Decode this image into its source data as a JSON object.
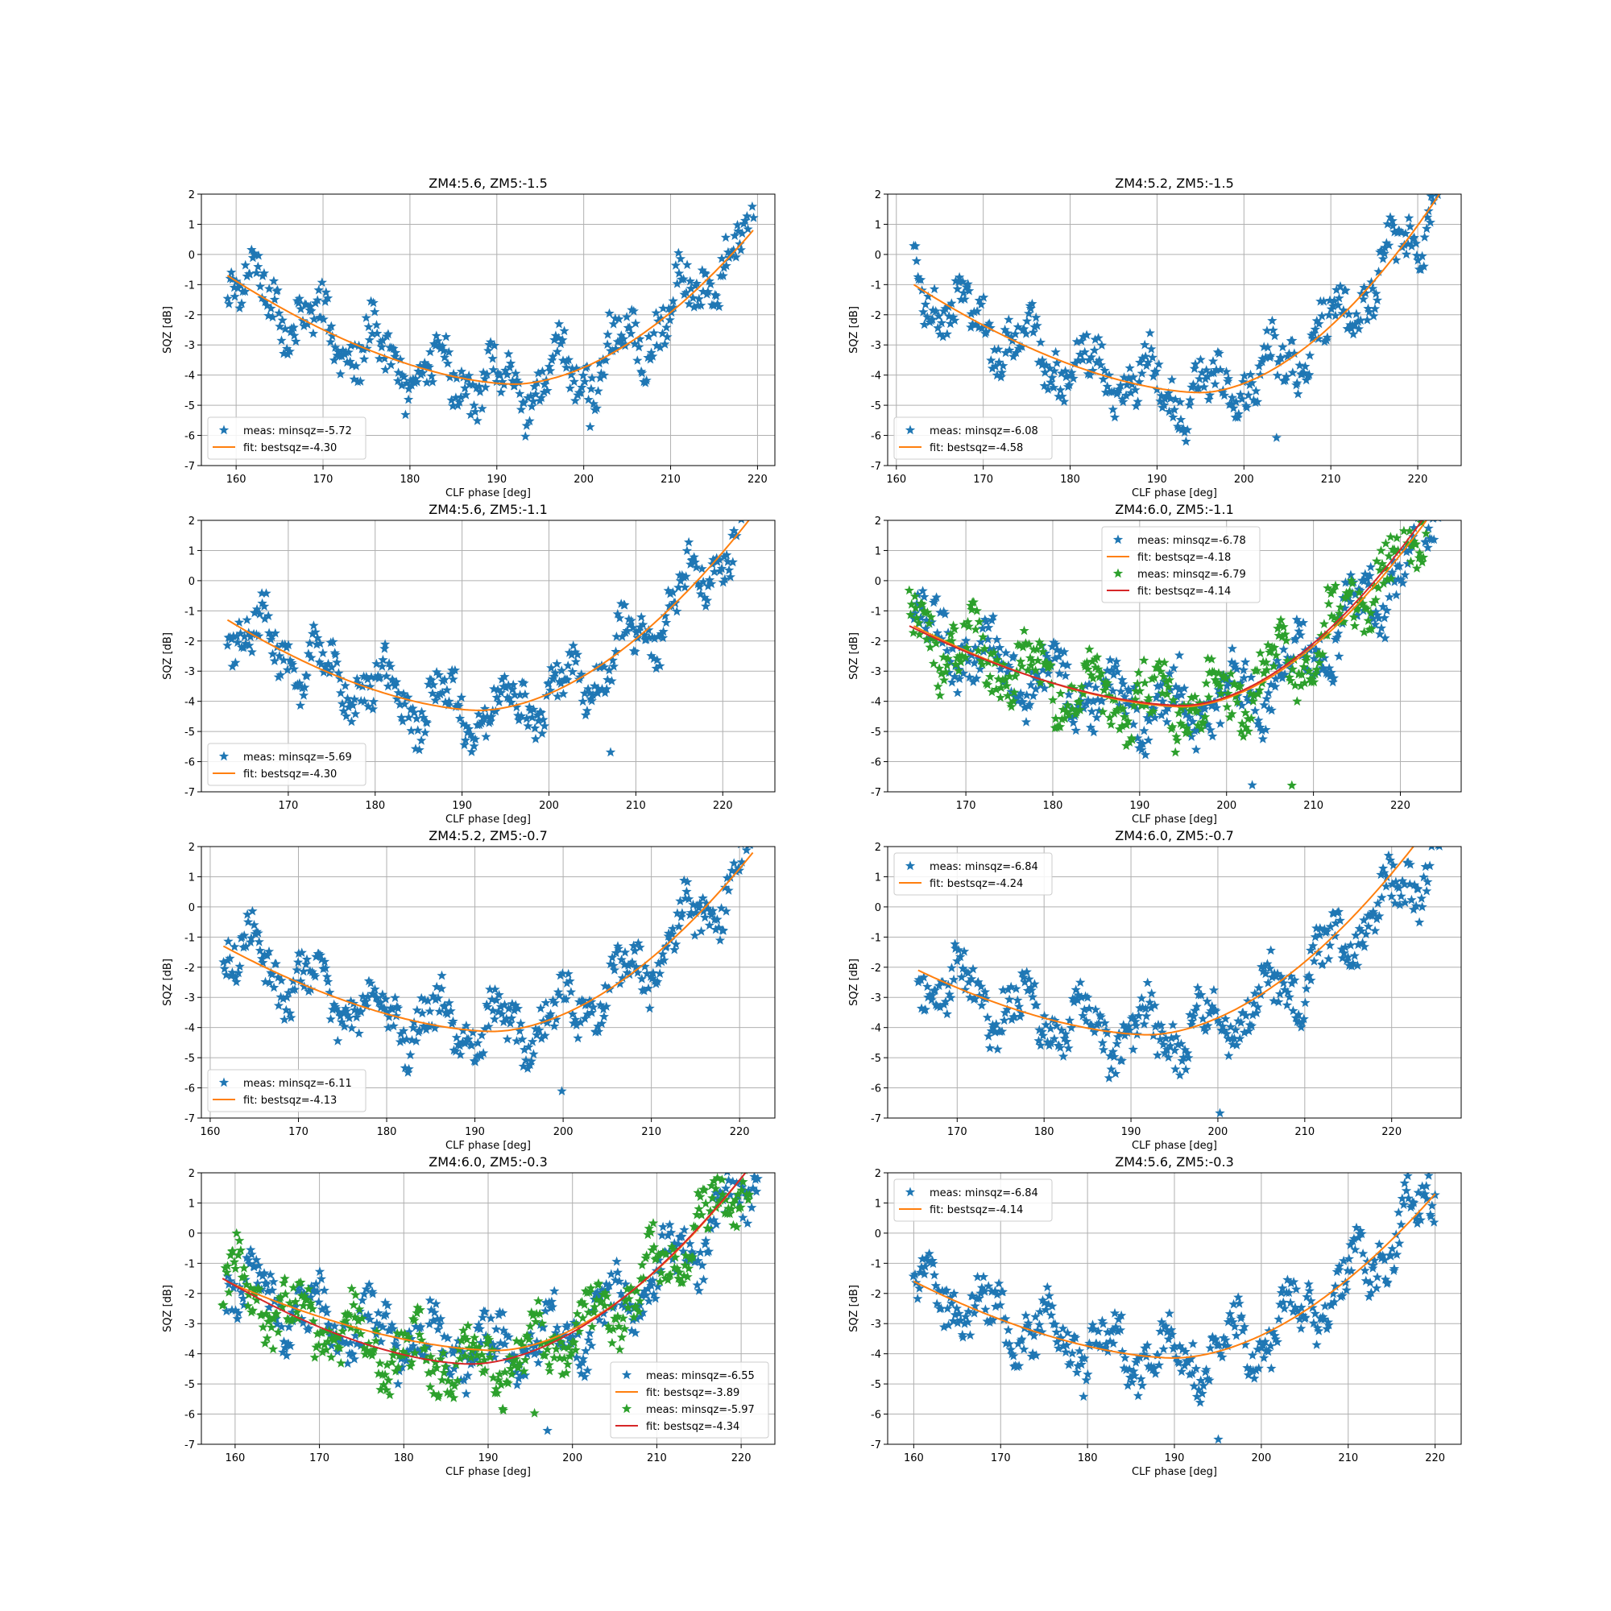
{
  "chart_data": [
    {
      "type": "scatter",
      "title": "ZM4:5.6, ZM5:-1.5",
      "xlabel": "CLF phase [deg]",
      "ylabel": "SQZ [dB]",
      "xlim": [
        156,
        222
      ],
      "ylim": [
        -7,
        2
      ],
      "xticks": [
        160,
        170,
        180,
        190,
        200,
        210,
        220
      ],
      "yticks": [
        -7,
        -6,
        -5,
        -4,
        -3,
        -2,
        -1,
        0,
        1,
        2
      ],
      "grid": true,
      "legend": "lower-left",
      "series": [
        {
          "name": "meas: minsqz=-5.72",
          "kind": "meas",
          "color": "#1f77b4",
          "range": [
            159,
            219.5
          ],
          "fit": {
            "min_x": 192,
            "min_y": -4.3,
            "left_y": -0.7,
            "right_y": 0.8
          },
          "scatter": 1.6,
          "extreme": -5.72,
          "n": 400
        },
        {
          "name": "fit: bestsqz=-4.30",
          "kind": "fit",
          "color": "#ff7f0e",
          "range": [
            159,
            219.5
          ],
          "fit": {
            "min_x": 192,
            "min_y": -4.3,
            "left_y": -0.7,
            "right_y": 0.8
          }
        }
      ]
    },
    {
      "type": "scatter",
      "title": "ZM4:5.2, ZM5:-1.5",
      "xlabel": "CLF phase [deg]",
      "ylabel": "SQZ [dB]",
      "xlim": [
        159,
        225
      ],
      "ylim": [
        -7,
        2
      ],
      "xticks": [
        160,
        170,
        180,
        190,
        200,
        210,
        220
      ],
      "yticks": [
        -7,
        -6,
        -5,
        -4,
        -3,
        -2,
        -1,
        0,
        1,
        2
      ],
      "grid": true,
      "legend": "lower-left",
      "series": [
        {
          "name": "meas: minsqz=-6.08",
          "kind": "meas",
          "color": "#1f77b4",
          "range": [
            162,
            222.5
          ],
          "fit": {
            "min_x": 195,
            "min_y": -4.58,
            "left_y": -1.0,
            "right_y": 2.0
          },
          "scatter": 1.6,
          "extreme": -6.08,
          "n": 400
        },
        {
          "name": "fit: bestsqz=-4.58",
          "kind": "fit",
          "color": "#ff7f0e",
          "range": [
            162,
            222.5
          ],
          "fit": {
            "min_x": 195,
            "min_y": -4.58,
            "left_y": -1.0,
            "right_y": 2.0
          }
        }
      ]
    },
    {
      "type": "scatter",
      "title": "ZM4:5.6, ZM5:-1.1",
      "xlabel": "CLF phase [deg]",
      "ylabel": "SQZ [dB]",
      "xlim": [
        160,
        226
      ],
      "ylim": [
        -7,
        2
      ],
      "xticks": [
        170,
        180,
        190,
        200,
        210,
        220
      ],
      "yticks": [
        -7,
        -6,
        -5,
        -4,
        -3,
        -2,
        -1,
        0,
        1,
        2
      ],
      "grid": true,
      "legend": "lower-left",
      "series": [
        {
          "name": "meas: minsqz=-5.69",
          "kind": "meas",
          "color": "#1f77b4",
          "range": [
            163,
            223
          ],
          "fit": {
            "min_x": 192,
            "min_y": -4.3,
            "left_y": -1.3,
            "right_y": 2.0
          },
          "scatter": 1.5,
          "extreme": -5.69,
          "n": 400
        },
        {
          "name": "fit: bestsqz=-4.30",
          "kind": "fit",
          "color": "#ff7f0e",
          "range": [
            163,
            223
          ],
          "fit": {
            "min_x": 192,
            "min_y": -4.3,
            "left_y": -1.3,
            "right_y": 2.0
          }
        }
      ]
    },
    {
      "type": "scatter",
      "title": "ZM4:6.0, ZM5:-1.1",
      "xlabel": "CLF phase [deg]",
      "ylabel": "SQZ [dB]",
      "xlim": [
        161,
        227
      ],
      "ylim": [
        -7,
        2
      ],
      "xticks": [
        170,
        180,
        190,
        200,
        210,
        220
      ],
      "yticks": [
        -7,
        -6,
        -5,
        -4,
        -3,
        -2,
        -1,
        0,
        1,
        2
      ],
      "grid": true,
      "legend": "upper-center",
      "series": [
        {
          "name": "meas: minsqz=-6.78",
          "kind": "meas",
          "color": "#1f77b4",
          "range": [
            164,
            224.5
          ],
          "fit": {
            "min_x": 195,
            "min_y": -4.18,
            "left_y": -1.5,
            "right_y": 2.0
          },
          "scatter": 1.8,
          "extreme": -6.78,
          "n": 400
        },
        {
          "name": "fit: bestsqz=-4.18",
          "kind": "fit",
          "color": "#ff7f0e",
          "range": [
            164,
            223
          ],
          "fit": {
            "min_x": 195,
            "min_y": -4.18,
            "left_y": -1.5,
            "right_y": 2.0
          }
        },
        {
          "name": "meas: minsqz=-6.79",
          "kind": "meas",
          "color": "#2ca02c",
          "range": [
            163.5,
            223
          ],
          "fit": {
            "min_x": 195,
            "min_y": -4.14,
            "left_y": -1.5,
            "right_y": 2.0
          },
          "scatter": 1.8,
          "extreme": -6.79,
          "n": 400
        },
        {
          "name": "fit: bestsqz=-4.14",
          "kind": "fit",
          "color": "#d62728",
          "range": [
            163.5,
            222.5
          ],
          "fit": {
            "min_x": 195,
            "min_y": -4.14,
            "left_y": -1.5,
            "right_y": 2.0
          }
        }
      ]
    },
    {
      "type": "scatter",
      "title": "ZM4:5.2, ZM5:-0.7",
      "xlabel": "CLF phase [deg]",
      "ylabel": "SQZ [dB]",
      "xlim": [
        159,
        224
      ],
      "ylim": [
        -7,
        2
      ],
      "xticks": [
        160,
        170,
        180,
        190,
        200,
        210,
        220
      ],
      "yticks": [
        -7,
        -6,
        -5,
        -4,
        -3,
        -2,
        -1,
        0,
        1,
        2
      ],
      "grid": true,
      "legend": "lower-left",
      "series": [
        {
          "name": "meas: minsqz=-6.11",
          "kind": "meas",
          "color": "#1f77b4",
          "range": [
            161.5,
            221.5
          ],
          "fit": {
            "min_x": 192,
            "min_y": -4.13,
            "left_y": -1.3,
            "right_y": 1.8
          },
          "scatter": 1.5,
          "extreme": -6.11,
          "n": 400
        },
        {
          "name": "fit: bestsqz=-4.13",
          "kind": "fit",
          "color": "#ff7f0e",
          "range": [
            161.5,
            221.5
          ],
          "fit": {
            "min_x": 192,
            "min_y": -4.13,
            "left_y": -1.3,
            "right_y": 1.8
          }
        }
      ]
    },
    {
      "type": "scatter",
      "title": "ZM4:6.0, ZM5:-0.7",
      "xlabel": "CLF phase [deg]",
      "ylabel": "SQZ [dB]",
      "xlim": [
        162,
        228
      ],
      "ylim": [
        -7,
        2
      ],
      "xticks": [
        170,
        180,
        190,
        200,
        210,
        220
      ],
      "yticks": [
        -7,
        -6,
        -5,
        -4,
        -3,
        -2,
        -1,
        0,
        1,
        2
      ],
      "grid": true,
      "legend": "upper-left",
      "series": [
        {
          "name": "meas: minsqz=-6.84",
          "kind": "meas",
          "color": "#1f77b4",
          "range": [
            165.5,
            225.5
          ],
          "fit": {
            "min_x": 192,
            "min_y": -4.24,
            "left_y": -2.1,
            "right_y": 2.0
          },
          "scatter": 1.6,
          "extreme": -6.84,
          "n": 400
        },
        {
          "name": "fit: bestsqz=-4.24",
          "kind": "fit",
          "color": "#ff7f0e",
          "range": [
            165.5,
            222.5
          ],
          "fit": {
            "min_x": 192,
            "min_y": -4.24,
            "left_y": -2.1,
            "right_y": 2.0
          }
        }
      ]
    },
    {
      "type": "scatter",
      "title": "ZM4:6.0, ZM5:-0.3",
      "xlabel": "CLF phase [deg]",
      "ylabel": "SQZ [dB]",
      "xlim": [
        156,
        224
      ],
      "ylim": [
        -7,
        2
      ],
      "xticks": [
        160,
        170,
        180,
        190,
        200,
        210,
        220
      ],
      "yticks": [
        -7,
        -6,
        -5,
        -4,
        -3,
        -2,
        -1,
        0,
        1,
        2
      ],
      "grid": true,
      "legend": "lower-right",
      "series": [
        {
          "name": "meas: minsqz=-6.55",
          "kind": "meas",
          "color": "#1f77b4",
          "range": [
            159,
            222
          ],
          "fit": {
            "min_x": 191,
            "min_y": -3.89,
            "left_y": -1.6,
            "right_y": 2.0
          },
          "scatter": 1.6,
          "extreme": -6.55,
          "n": 400
        },
        {
          "name": "fit: bestsqz=-3.89",
          "kind": "fit",
          "color": "#ff7f0e",
          "range": [
            159,
            220.5
          ],
          "fit": {
            "min_x": 191,
            "min_y": -3.89,
            "left_y": -1.6,
            "right_y": 2.0
          }
        },
        {
          "name": "meas: minsqz=-5.97",
          "kind": "meas",
          "color": "#2ca02c",
          "range": [
            158.5,
            221
          ],
          "fit": {
            "min_x": 188,
            "min_y": -4.34,
            "left_y": -1.5,
            "right_y": 2.0
          },
          "scatter": 1.6,
          "extreme": -5.97,
          "n": 400
        },
        {
          "name": "fit: bestsqz=-4.34",
          "kind": "fit",
          "color": "#d62728",
          "range": [
            158.5,
            220.5
          ],
          "fit": {
            "min_x": 188,
            "min_y": -4.34,
            "left_y": -1.5,
            "right_y": 2.0
          }
        }
      ]
    },
    {
      "type": "scatter",
      "title": "ZM4:5.6, ZM5:-0.3",
      "xlabel": "CLF phase [deg]",
      "ylabel": "SQZ [dB]",
      "xlim": [
        157,
        223
      ],
      "ylim": [
        -7,
        2
      ],
      "xticks": [
        160,
        170,
        180,
        190,
        200,
        210,
        220
      ],
      "yticks": [
        -7,
        -6,
        -5,
        -4,
        -3,
        -2,
        -1,
        0,
        1,
        2
      ],
      "grid": true,
      "legend": "upper-left",
      "series": [
        {
          "name": "meas: minsqz=-6.84",
          "kind": "meas",
          "color": "#1f77b4",
          "range": [
            160,
            220
          ],
          "fit": {
            "min_x": 190,
            "min_y": -4.14,
            "left_y": -1.6,
            "right_y": 1.3
          },
          "scatter": 1.6,
          "extreme": -6.84,
          "n": 400
        },
        {
          "name": "fit: bestsqz=-4.14",
          "kind": "fit",
          "color": "#ff7f0e",
          "range": [
            160,
            220
          ],
          "fit": {
            "min_x": 190,
            "min_y": -4.14,
            "left_y": -1.6,
            "right_y": 1.3
          }
        }
      ]
    }
  ]
}
